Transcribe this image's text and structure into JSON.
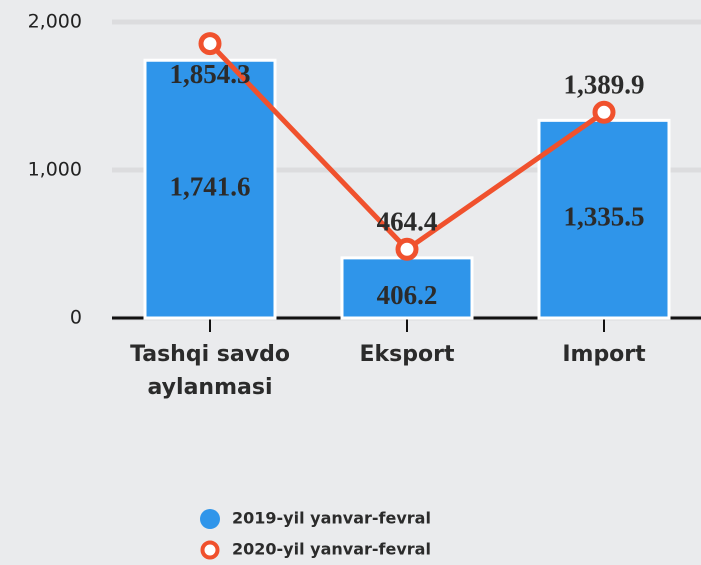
{
  "chart_data": {
    "type": "combo",
    "categories": [
      "Tashqi savdo aylanmasi",
      "Eksport",
      "Import"
    ],
    "series": [
      {
        "name": "2019-yil yanvar-fevral",
        "type": "bar",
        "color": "#2f95ea",
        "values": [
          1741.6,
          406.2,
          1335.5
        ],
        "value_labels": [
          "1,741.6",
          "406.2",
          "1,335.5"
        ]
      },
      {
        "name": "2020-yil yanvar-fevral",
        "type": "line",
        "color": "#f0512d",
        "values": [
          1854.3,
          464.4,
          1389.9
        ],
        "value_labels": [
          "1,854.3",
          "464.4",
          "1,389.9"
        ]
      }
    ],
    "ylim": [
      0,
      2000
    ],
    "yticks": [
      0,
      {
        "value": 1000,
        "label": "1,000"
      },
      {
        "value": 2000,
        "label": "2,000"
      }
    ],
    "grid": true,
    "legend": "bottom"
  }
}
